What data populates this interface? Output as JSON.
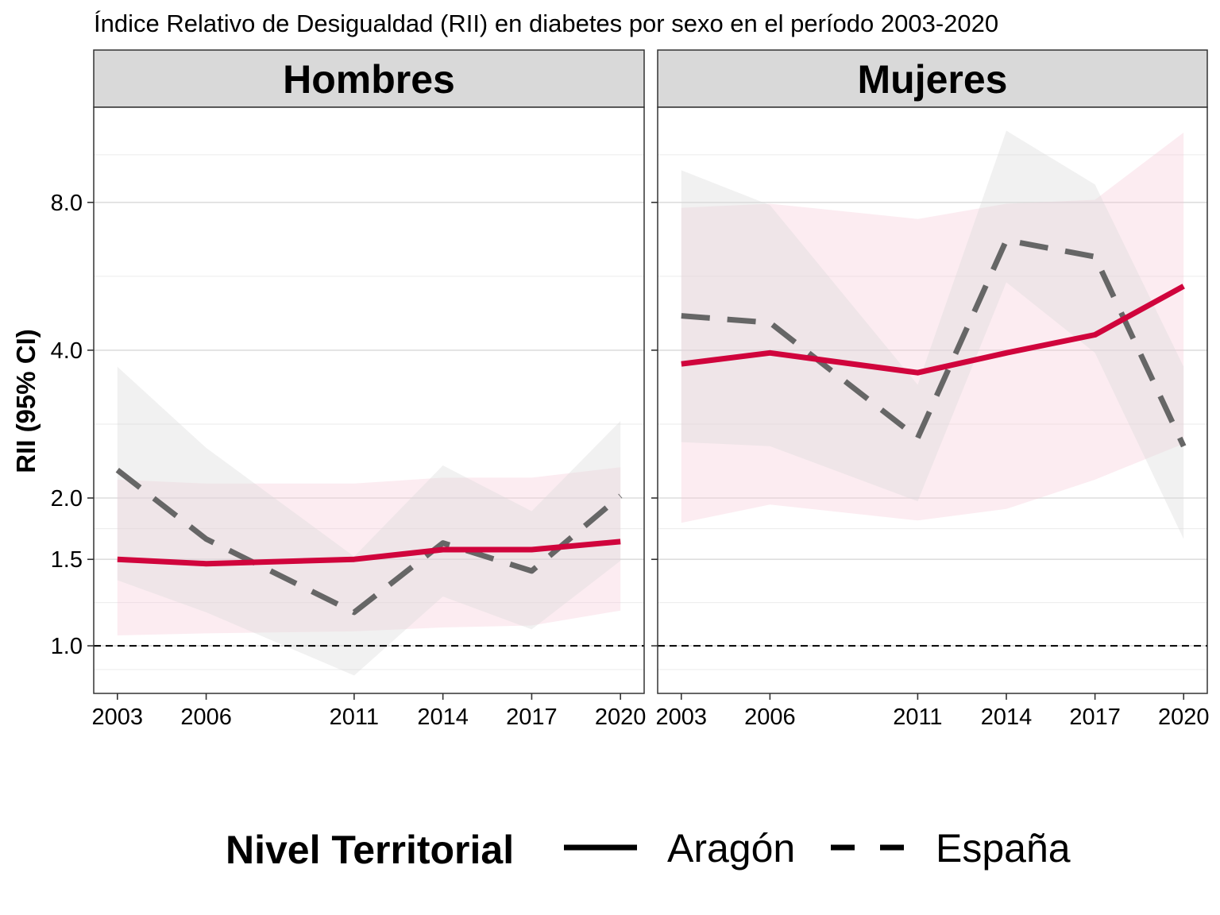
{
  "chart_data": {
    "type": "line",
    "title": "Índice Relativo de Desigualdad (RII) en diabetes por sexo en el período 2003-2020",
    "xlabel": "",
    "ylabel": "RII (95% CI)",
    "x_ticks": [
      2003,
      2006,
      2011,
      2014,
      2017,
      2020
    ],
    "y_ticks": [
      1.0,
      1.5,
      2.0,
      4.0,
      8.0
    ],
    "y_tick_labels": [
      "1.0",
      "1.5",
      "2.0",
      "4.0",
      "8.0"
    ],
    "y_scale": "log",
    "ylim": [
      0.8,
      12.5
    ],
    "xlim": [
      2002.2,
      2020.8
    ],
    "reference_line": 1.0,
    "grid": true,
    "colors": {
      "aragon": "#D0043C",
      "espana": "#666666",
      "aragon_band": "#F7C9D6",
      "espana_band": "#D9D9D9"
    },
    "legend": {
      "title": "Nivel Territorial",
      "position": "bottom",
      "items": [
        {
          "label": "Aragón",
          "linetype": "solid"
        },
        {
          "label": "España",
          "linetype": "dashed"
        }
      ]
    },
    "panels": [
      {
        "strip": "Hombres",
        "series": [
          {
            "name": "Aragón",
            "x": [
              2003,
              2006,
              2011,
              2014,
              2017,
              2020
            ],
            "values": [
              1.5,
              1.47,
              1.5,
              1.57,
              1.57,
              1.63
            ],
            "lower": [
              1.05,
              1.06,
              1.07,
              1.09,
              1.1,
              1.18
            ],
            "upper": [
              2.18,
              2.14,
              2.14,
              2.2,
              2.2,
              2.31
            ]
          },
          {
            "name": "España",
            "x": [
              2003,
              2006,
              2011,
              2014,
              2017,
              2020
            ],
            "values": [
              2.28,
              1.65,
              1.17,
              1.62,
              1.42,
              2.02
            ],
            "lower": [
              1.36,
              1.17,
              0.87,
              1.26,
              1.08,
              1.49
            ],
            "upper": [
              3.7,
              2.53,
              1.52,
              2.33,
              1.88,
              2.87
            ]
          }
        ]
      },
      {
        "strip": "Mujeres",
        "series": [
          {
            "name": "Aragón",
            "x": [
              2003,
              2006,
              2011,
              2014,
              2017,
              2020
            ],
            "values": [
              3.75,
              3.95,
              3.6,
              3.95,
              4.3,
              5.4
            ],
            "lower": [
              1.78,
              1.94,
              1.8,
              1.9,
              2.18,
              2.58
            ],
            "upper": [
              7.8,
              7.95,
              7.4,
              7.95,
              8.1,
              11.1
            ]
          },
          {
            "name": "España",
            "x": [
              2003,
              2006,
              2011,
              2014,
              2017,
              2020
            ],
            "values": [
              4.7,
              4.55,
              2.65,
              6.7,
              6.2,
              2.55
            ],
            "lower": [
              2.6,
              2.55,
              1.97,
              5.5,
              3.95,
              1.65
            ],
            "upper": [
              9.3,
              7.9,
              3.4,
              11.2,
              8.7,
              3.7
            ]
          }
        ]
      }
    ]
  }
}
